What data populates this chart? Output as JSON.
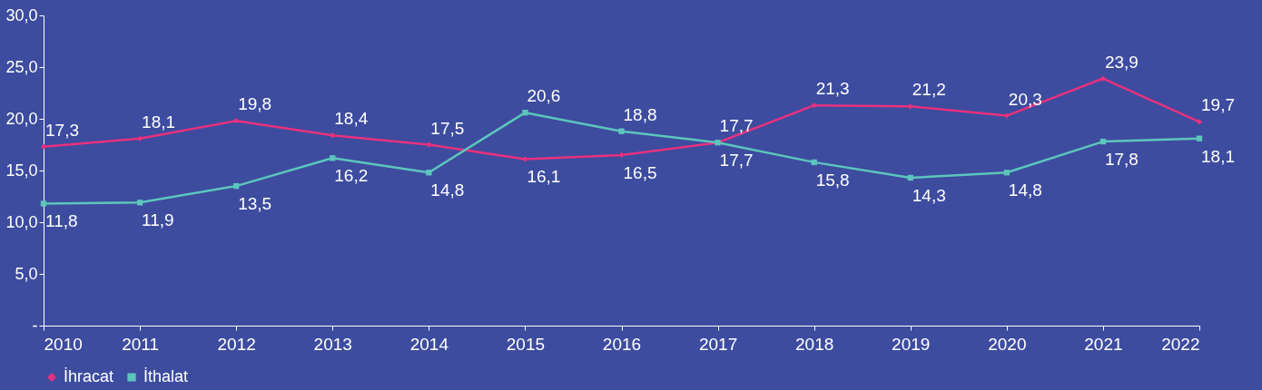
{
  "chart_data": {
    "type": "line",
    "categories": [
      "2010",
      "2011",
      "2012",
      "2013",
      "2014",
      "2015",
      "2016",
      "2017",
      "2018",
      "2019",
      "2020",
      "2021",
      "2022"
    ],
    "series": [
      {
        "name": "İhracat",
        "color": "#e8317e",
        "marker": "diamond",
        "values": [
          17.3,
          18.1,
          19.8,
          18.4,
          17.5,
          16.1,
          16.5,
          17.7,
          21.3,
          21.2,
          20.3,
          23.9,
          19.7
        ],
        "value_labels": [
          "17,3",
          "18,1",
          "19,8",
          "18,4",
          "17,5",
          "16,1",
          "16,5",
          "17,7",
          "21,3",
          "21,2",
          "20,3",
          "23,9",
          "19,7"
        ]
      },
      {
        "name": "İthalat",
        "color": "#5cc6bd",
        "marker": "square",
        "values": [
          11.8,
          11.9,
          13.5,
          16.2,
          14.8,
          20.6,
          18.8,
          17.7,
          15.8,
          14.3,
          14.8,
          17.8,
          18.1
        ],
        "value_labels": [
          "11,8",
          "11,9",
          "13,5",
          "16,2",
          "14,8",
          "20,6",
          "18,8",
          "17,7",
          "15,8",
          "14,3",
          "14,8",
          "17,8",
          "18,1"
        ]
      }
    ],
    "ylim": [
      0,
      30
    ],
    "yticks": [
      {
        "value": 0,
        "label": "-"
      },
      {
        "value": 5,
        "label": "5,0"
      },
      {
        "value": 10,
        "label": "10,0"
      },
      {
        "value": 15,
        "label": "15,0"
      },
      {
        "value": 20,
        "label": "20,0"
      },
      {
        "value": 25,
        "label": "25,0"
      },
      {
        "value": 30,
        "label": "30,0"
      }
    ],
    "grid": false,
    "legend": "bottom",
    "line_style": "solid"
  }
}
